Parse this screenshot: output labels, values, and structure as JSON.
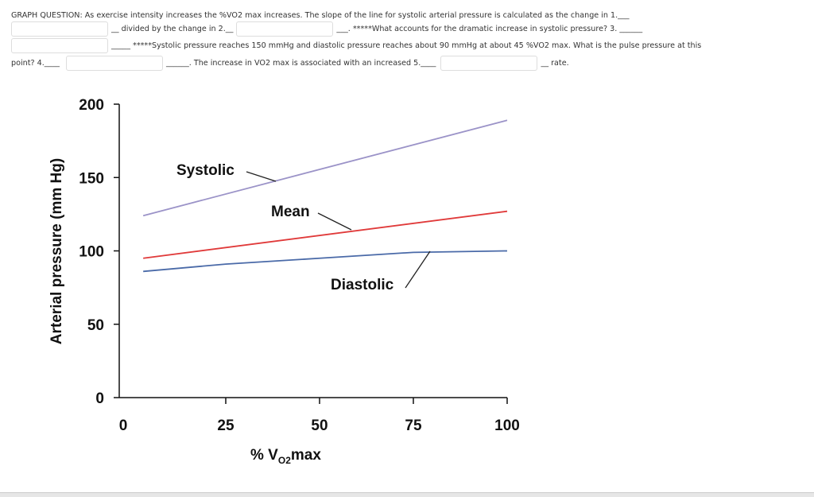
{
  "question": {
    "line1": "GRAPH QUESTION: As exercise intensity increases the %VO2 max increases. The slope of the line for systolic arterial pressure is calculated as the change in 1.___",
    "line2a": "__ divided by the change in 2.__",
    "line2b": "___. *****What accounts for the dramatic increase in systolic pressure? 3. ______",
    "line3": "_____ *****Systolic pressure reaches 150 mmHg and diastolic pressure reaches about 90 mmHg at about 45 %VO2 max. What is the pulse pressure at this",
    "line4a": "point? 4.____",
    "line4b": "______. The increase in VO2 max is associated with an increased 5.____",
    "line4c": "__ rate.",
    "answers": [
      "",
      "",
      "",
      "",
      ""
    ]
  },
  "chart_data": {
    "type": "line",
    "xlabel": "% VO2max",
    "ylabel": "Arterial pressure (mm Hg)",
    "xlim": [
      0,
      100
    ],
    "ylim": [
      0,
      200
    ],
    "xticks": [
      0,
      25,
      50,
      75,
      100
    ],
    "yticks": [
      0,
      50,
      100,
      150,
      200
    ],
    "series": [
      {
        "name": "Systolic",
        "color": "#9b93c8",
        "x": [
          3,
          100
        ],
        "y": [
          124,
          189
        ]
      },
      {
        "name": "Mean",
        "color": "#e03a3a",
        "x": [
          3,
          100
        ],
        "y": [
          95,
          127
        ]
      },
      {
        "name": "Diastolic",
        "color": "#4a6aa8",
        "x": [
          3,
          25,
          50,
          75,
          100
        ],
        "y": [
          86,
          91,
          95,
          99,
          100
        ]
      }
    ],
    "annotations": [
      {
        "text": "Systolic",
        "series": "Systolic"
      },
      {
        "text": "Mean",
        "series": "Mean"
      },
      {
        "text": "Diastolic",
        "series": "Diastolic"
      }
    ]
  }
}
